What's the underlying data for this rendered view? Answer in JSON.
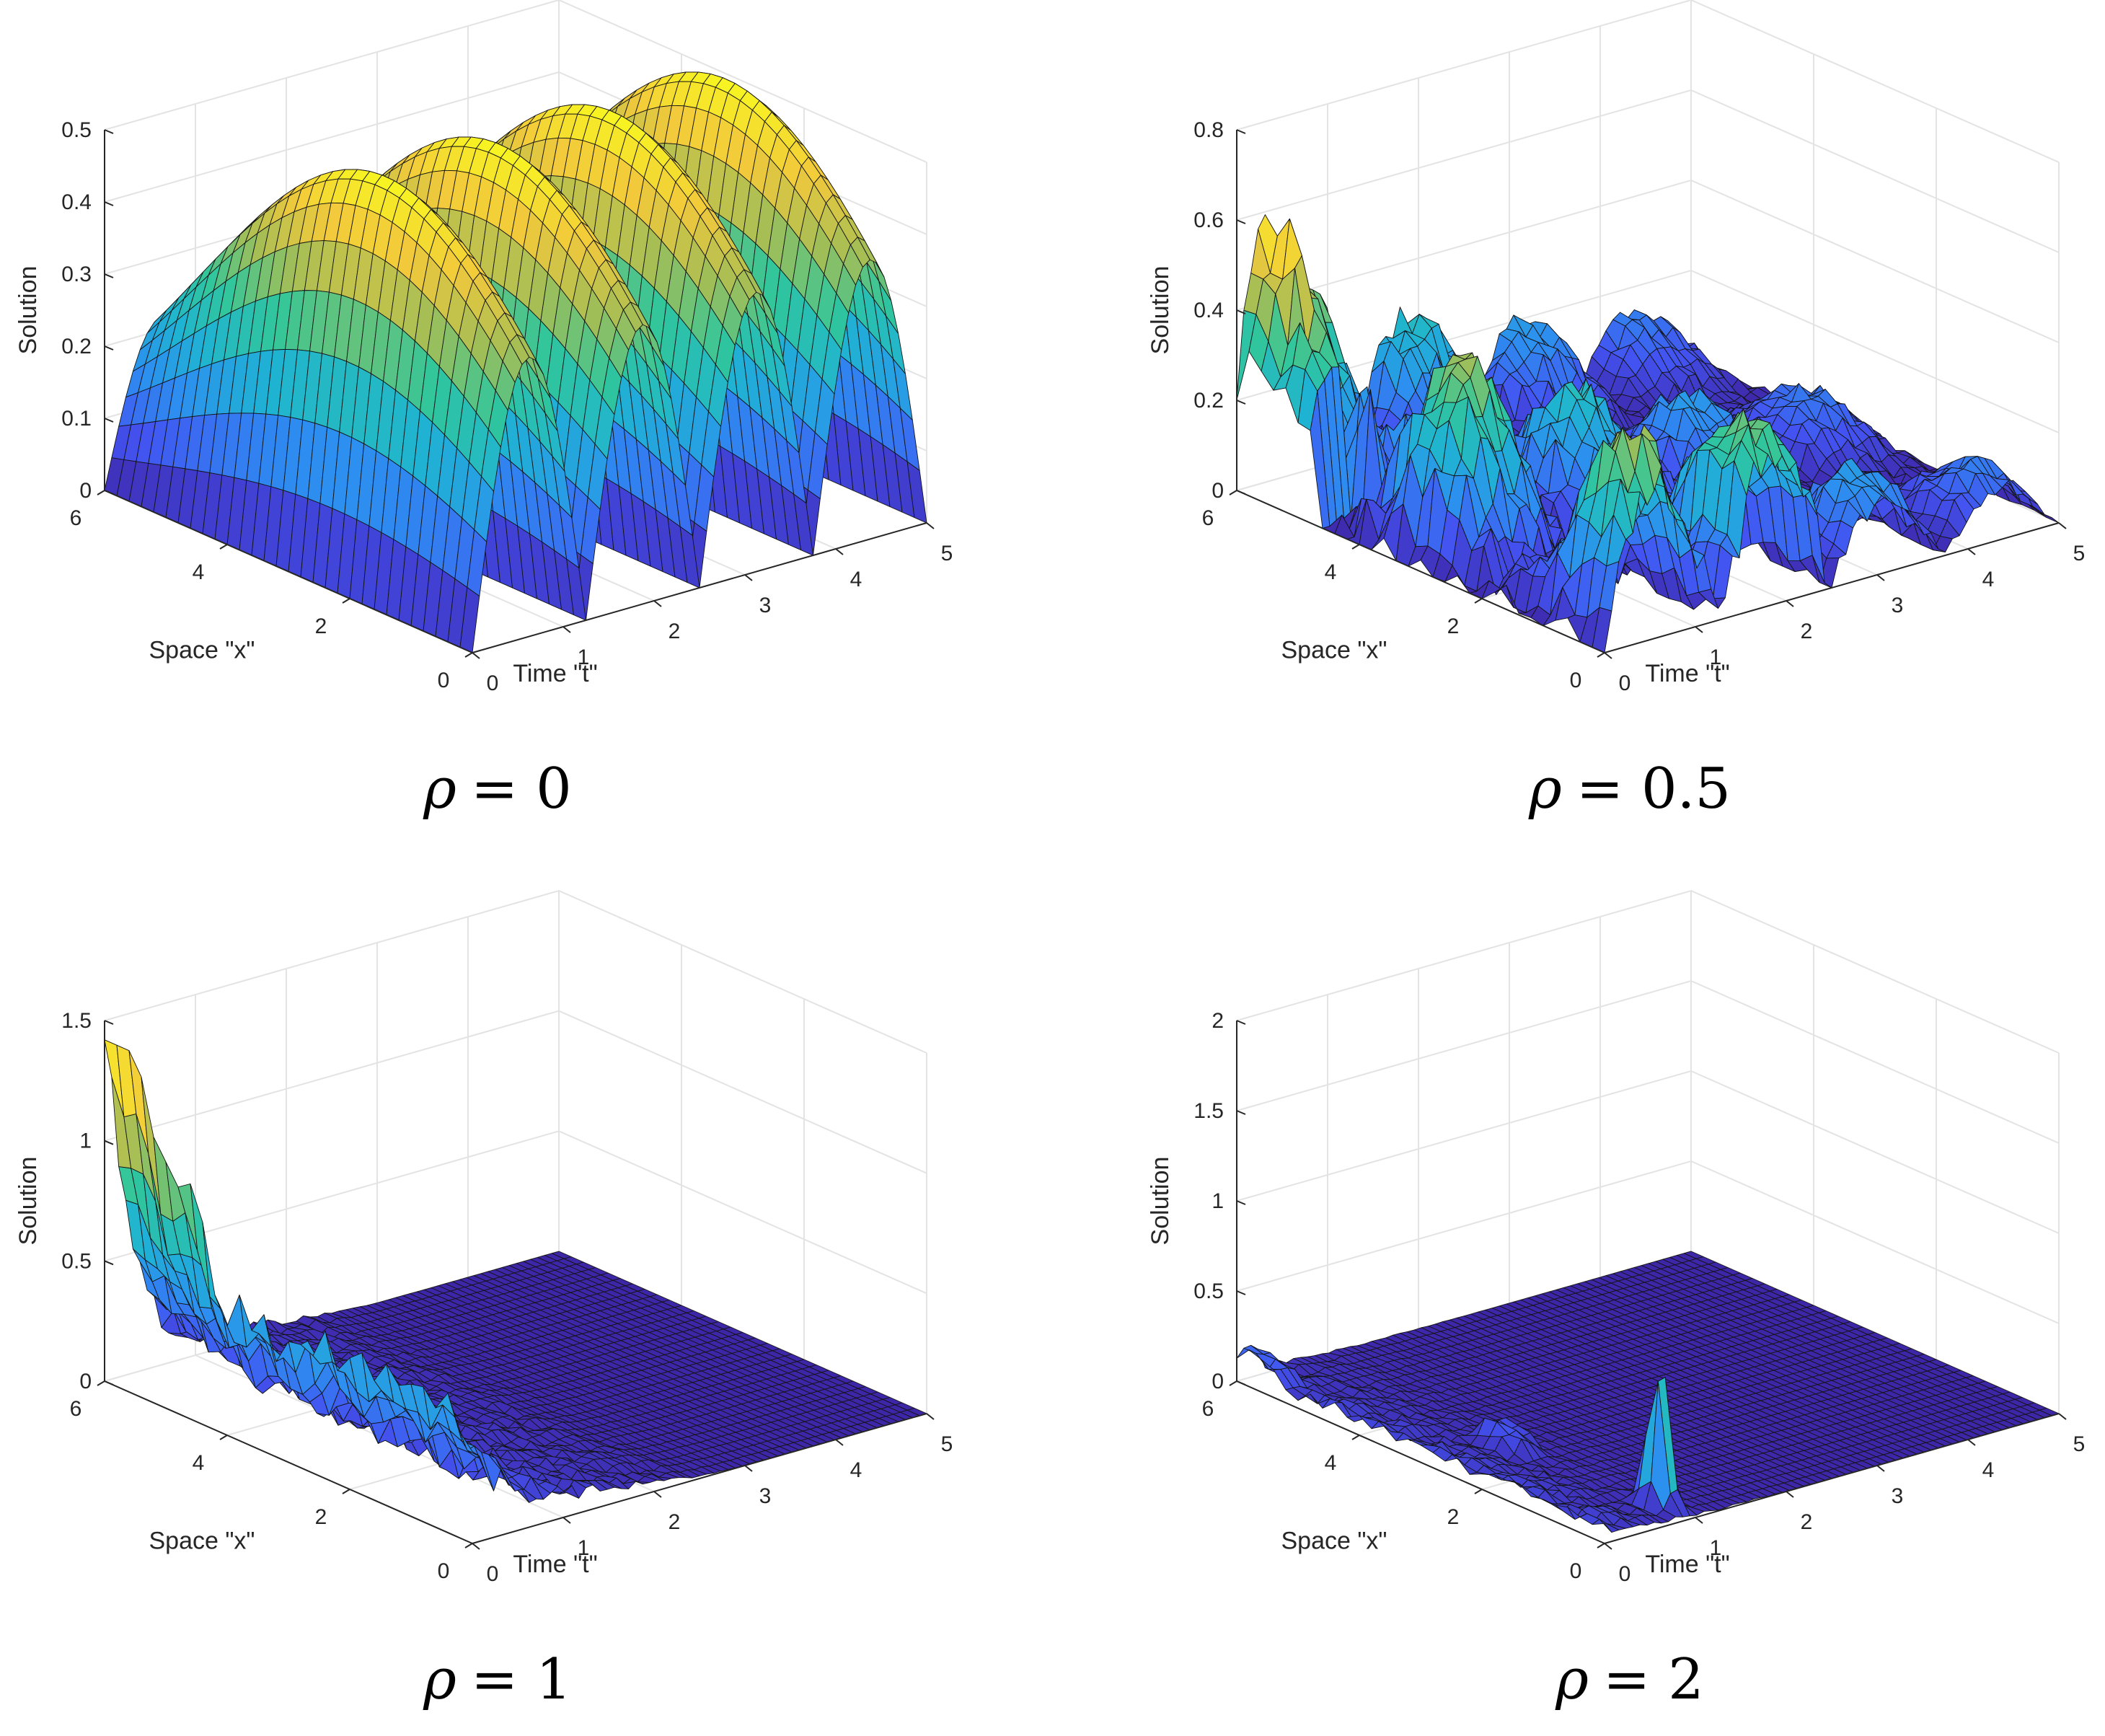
{
  "figure_title": "",
  "colormap": [
    "#3e26a8",
    "#4353f1",
    "#2d8ef0",
    "#1fb3d3",
    "#31c69b",
    "#a4be56",
    "#f2c93b",
    "#f8f721"
  ],
  "chart_data": [
    {
      "type": "surface3d",
      "caption_symbol": "ρ",
      "caption_value": "= 0",
      "surface_model": "rho0",
      "title": "",
      "xlabel": "Space \"x\"",
      "ylabel": "Time \"t\"",
      "zlabel": "Solution",
      "xlim": [
        0,
        6
      ],
      "ylim": [
        0,
        5
      ],
      "zlim": [
        0,
        0.5
      ],
      "xticks": [
        "0",
        "2",
        "4",
        "6"
      ],
      "yticks": [
        "0",
        "1",
        "2",
        "3",
        "4",
        "5"
      ],
      "zticks": [
        "0",
        "0.1",
        "0.2",
        "0.3",
        "0.4",
        "0.5"
      ],
      "z_peak_approx": 0.55,
      "grid": true
    },
    {
      "type": "surface3d",
      "caption_symbol": "ρ",
      "caption_value": "= 0.5",
      "surface_model": "rho05",
      "title": "",
      "xlabel": "Space \"x\"",
      "ylabel": "Time \"t\"",
      "zlabel": "Solution",
      "xlim": [
        0,
        6
      ],
      "ylim": [
        0,
        5
      ],
      "zlim": [
        0,
        0.8
      ],
      "xticks": [
        "0",
        "2",
        "4",
        "6"
      ],
      "yticks": [
        "0",
        "1",
        "2",
        "3",
        "4",
        "5"
      ],
      "zticks": [
        "0",
        "0.2",
        "0.4",
        "0.6",
        "0.8"
      ],
      "z_peak_approx": 0.6,
      "grid": true
    },
    {
      "type": "surface3d",
      "caption_symbol": "ρ",
      "caption_value": "= 1",
      "surface_model": "rho1",
      "title": "",
      "xlabel": "Space \"x\"",
      "ylabel": "Time \"t\"",
      "zlabel": "Solution",
      "xlim": [
        0,
        6
      ],
      "ylim": [
        0,
        5
      ],
      "zlim": [
        0,
        1.5
      ],
      "xticks": [
        "0",
        "2",
        "4",
        "6"
      ],
      "yticks": [
        "0",
        "1",
        "2",
        "3",
        "4",
        "5"
      ],
      "zticks": [
        "0",
        "0.5",
        "1",
        "1.5"
      ],
      "z_peak_approx": 1.4,
      "grid": true
    },
    {
      "type": "surface3d",
      "caption_symbol": "ρ",
      "caption_value": "= 2",
      "surface_model": "rho2",
      "title": "",
      "xlabel": "Space \"x\"",
      "ylabel": "Time \"t\"",
      "zlabel": "Solution",
      "xlim": [
        0,
        6
      ],
      "ylim": [
        0,
        5
      ],
      "zlim": [
        0,
        2
      ],
      "xticks": [
        "0",
        "2",
        "4",
        "6"
      ],
      "yticks": [
        "0",
        "1",
        "2",
        "3",
        "4",
        "5"
      ],
      "zticks": [
        "0",
        "0.5",
        "1",
        "1.5",
        "2"
      ],
      "z_peak_approx": 0.9,
      "grid": true
    }
  ]
}
